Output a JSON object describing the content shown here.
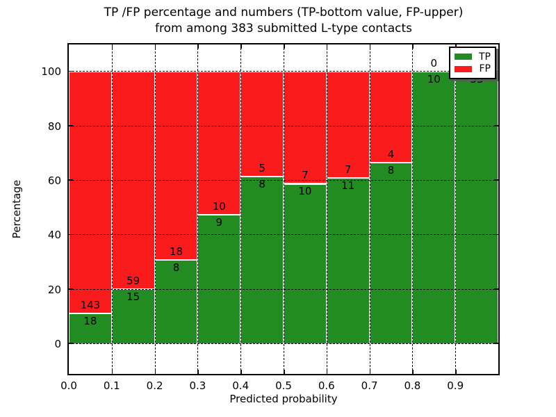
{
  "title": {
    "line1": "TP /FP percentage and numbers (TP-bottom value, FP-upper)",
    "line2": "from among 383 submitted L-type contacts"
  },
  "axes": {
    "x_label": "Predicted probability",
    "y_label": "Percentage",
    "x_tick_labels": [
      "0.0",
      "0.1",
      "0.2",
      "0.3",
      "0.4",
      "0.5",
      "0.6",
      "0.7",
      "0.8",
      "0.9"
    ],
    "y_tick_values": [
      0,
      20,
      40,
      60,
      80,
      100
    ],
    "ylim": [
      -11,
      110
    ],
    "grid": "dotted"
  },
  "legend": {
    "items": [
      {
        "label": "TP",
        "color": "#228B22"
      },
      {
        "label": "FP",
        "color": "#FA1C1C"
      }
    ]
  },
  "chart_data": {
    "type": "bar",
    "stacked": true,
    "normalized": "percent",
    "title": "TP /FP percentage and numbers (TP-bottom value, FP-upper) from among 383 submitted L-type contacts",
    "xlabel": "Predicted probability",
    "ylabel": "Percentage",
    "total_contacts": 383,
    "bin_edges": [
      0.0,
      0.1,
      0.2,
      0.3,
      0.4,
      0.5,
      0.6,
      0.7,
      0.8,
      0.9,
      1.0
    ],
    "categories": [
      "0.0-0.1",
      "0.1-0.2",
      "0.2-0.3",
      "0.3-0.4",
      "0.4-0.5",
      "0.5-0.6",
      "0.6-0.7",
      "0.7-0.8",
      "0.8-0.9",
      "0.9-1.0"
    ],
    "series": [
      {
        "name": "TP",
        "color": "#228B22",
        "values": [
          18,
          15,
          8,
          9,
          8,
          10,
          11,
          8,
          10,
          33
        ]
      },
      {
        "name": "FP",
        "color": "#FA1C1C",
        "values": [
          143,
          59,
          18,
          10,
          5,
          7,
          7,
          4,
          0,
          0
        ]
      }
    ],
    "tp_percent": [
      11.18,
      20.27,
      30.77,
      47.37,
      61.54,
      58.82,
      61.11,
      66.67,
      100.0,
      100.0
    ],
    "ylim": [
      -11,
      110
    ],
    "legend_position": "upper right"
  }
}
